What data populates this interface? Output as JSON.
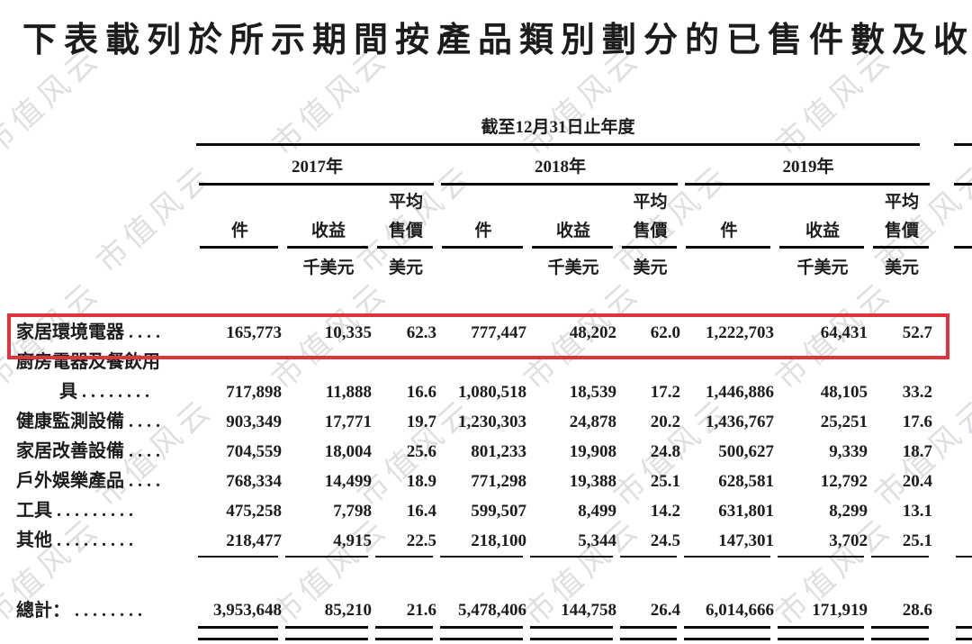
{
  "title": "下表載列於所示期間按產品類別劃分的已售件數及收",
  "watermark_text": "市值风云",
  "highlight": {
    "color": "#e1343a",
    "highlighted_row": "家居環境電器"
  },
  "table": {
    "period_header": "截至12月31日止年度",
    "years": [
      "2017年",
      "2018年",
      "2019年"
    ],
    "col_headers": {
      "units": "件",
      "revenue": "收益",
      "avg_line1": "平均",
      "avg_line2": "售價"
    },
    "unit_labels": {
      "revenue_unit": "千美元",
      "price_unit": "美元"
    },
    "rows": [
      {
        "label": "家居環境電器 . . . .",
        "highlight": true,
        "values": [
          "165,773",
          "10,335",
          "62.3",
          "777,447",
          "48,202",
          "62.0",
          "1,222,703",
          "64,431",
          "52.7"
        ]
      },
      {
        "label": "廚房電器及餐飲用",
        "label2": "具 . . . . . . . .",
        "values": [
          "717,898",
          "11,888",
          "16.6",
          "1,080,518",
          "18,539",
          "17.2",
          "1,446,886",
          "48,105",
          "33.2"
        ]
      },
      {
        "label": "健康監測設備 . . . .",
        "values": [
          "903,349",
          "17,771",
          "19.7",
          "1,230,303",
          "24,878",
          "20.2",
          "1,436,767",
          "25,251",
          "17.6"
        ]
      },
      {
        "label": "家居改善設備 . . . .",
        "values": [
          "704,559",
          "18,004",
          "25.6",
          "801,233",
          "19,908",
          "24.8",
          "500,627",
          "9,339",
          "18.7"
        ]
      },
      {
        "label": "戶外娛樂產品 . . . .",
        "values": [
          "768,334",
          "14,499",
          "18.9",
          "771,298",
          "19,388",
          "25.1",
          "628,581",
          "12,792",
          "20.4"
        ]
      },
      {
        "label": "工具 . . . . . . . . .",
        "values": [
          "475,258",
          "7,798",
          "16.4",
          "599,507",
          "8,499",
          "14.2",
          "631,801",
          "8,299",
          "13.1"
        ]
      },
      {
        "label": "其他 . . . . . . . . .",
        "values": [
          "218,477",
          "4,915",
          "22.5",
          "218,100",
          "5,344",
          "24.5",
          "147,301",
          "3,702",
          "25.1"
        ]
      }
    ],
    "total": {
      "label": "總計： . . . . . . . .",
      "values": [
        "3,953,648",
        "85,210",
        "21.6",
        "5,478,406",
        "144,758",
        "26.4",
        "6,014,666",
        "171,919",
        "28.6"
      ]
    }
  }
}
